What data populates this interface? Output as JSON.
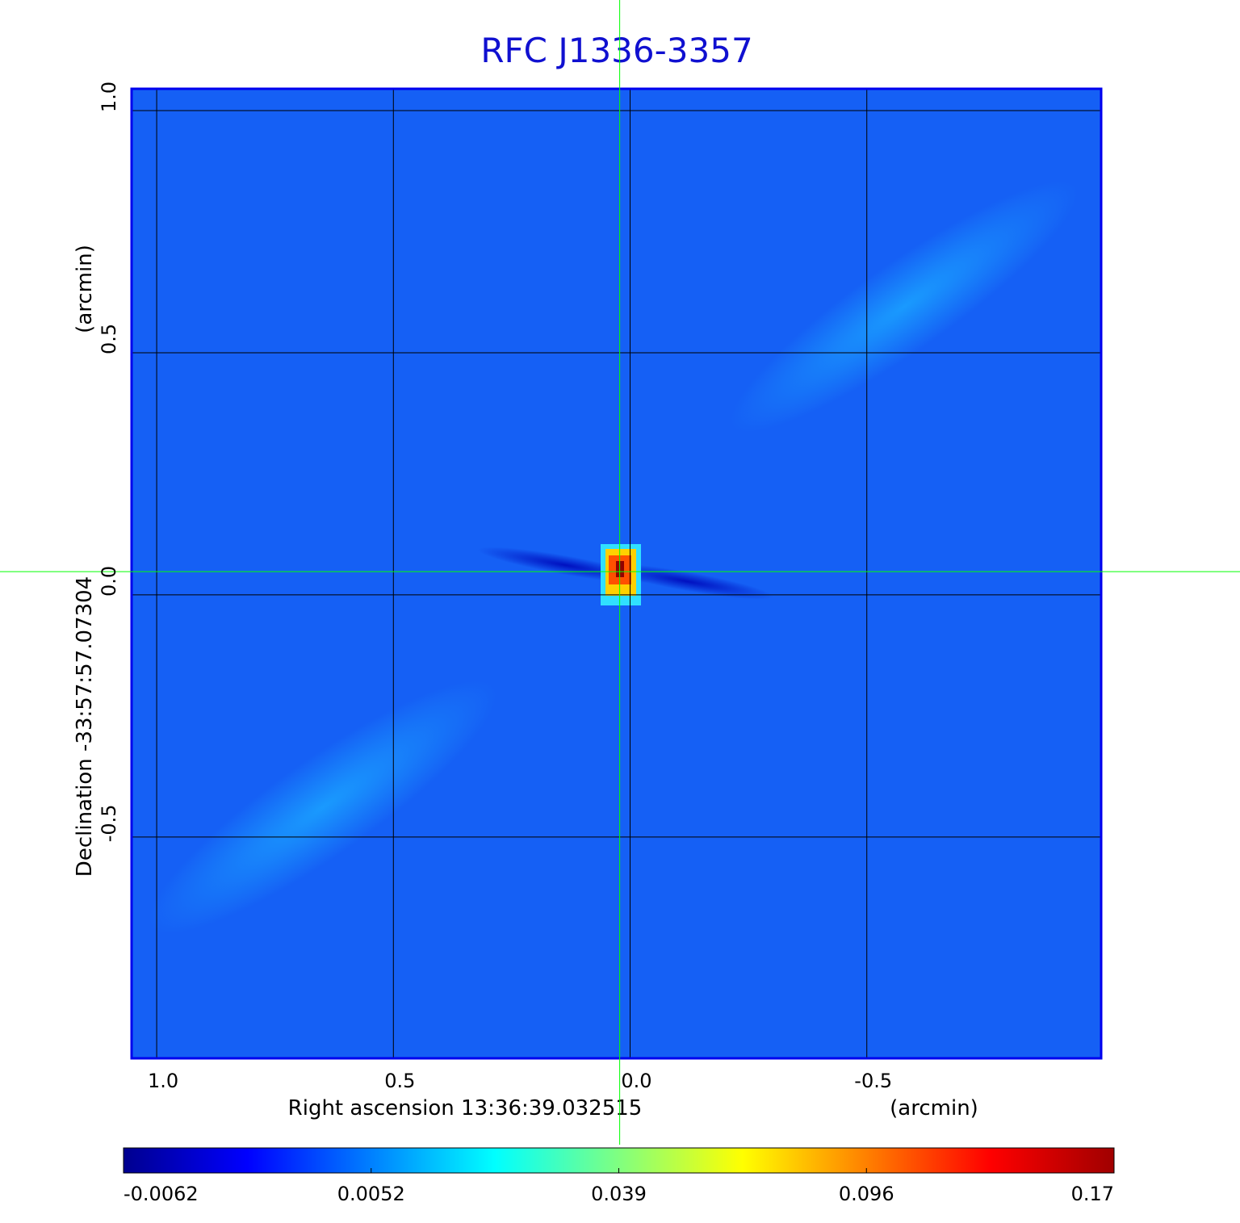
{
  "chart_data": {
    "type": "image",
    "title": "RFC J1336-3357",
    "x_label": "Right ascension  13:36:39.032515",
    "x_unit": "(arcmin)",
    "y_label": "Declination  -33:57:57.07304",
    "y_unit": "(arcmin)",
    "xlim": [
      1.053,
      -0.995
    ],
    "ylim": [
      -0.957,
      1.045
    ],
    "xticks": [
      {
        "value": 1,
        "label": "1.0"
      },
      0.5,
      {
        "value": 0,
        "label": "0.0"
      },
      -0.5
    ],
    "yticks": [
      {
        "value": 1,
        "label": "1.0"
      },
      0.5,
      {
        "value": 0,
        "label": "0.0"
      },
      -0.5
    ],
    "grid": true,
    "crosshair": {
      "x": 0.022,
      "y": 0.048,
      "color": "#00ff00"
    },
    "colorbar": {
      "ticks": [
        -0.0062,
        0.0052,
        0.039,
        0.096,
        0.17
      ],
      "colors": [
        "#00008f",
        "#0000ff",
        "#0080ff",
        "#00ffff",
        "#80ff80",
        "#ffff00",
        "#ff8000",
        "#ff0000",
        "#a00000"
      ]
    }
  }
}
